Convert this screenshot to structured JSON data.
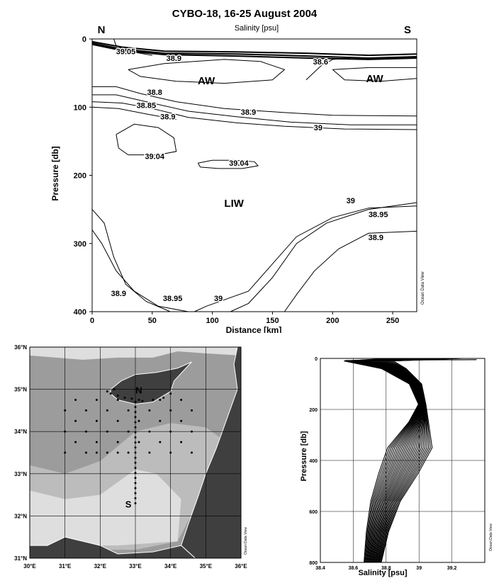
{
  "chart_data": [
    {
      "type": "contour",
      "title": "CYBO-18,  16-25 August 2004",
      "subtitle": "Salinity [psu]",
      "xlabel": "Distance [km]",
      "ylabel": "Pressure [db]",
      "xlim": [
        0,
        270
      ],
      "ylim": [
        400,
        0
      ],
      "xticks": [
        "0",
        "50",
        "100",
        "150",
        "200",
        "250"
      ],
      "yticks": [
        "0",
        "100",
        "200",
        "300",
        "400"
      ],
      "end_labels": {
        "left": "N",
        "right": "S"
      },
      "water_masses": [
        {
          "name": "AW",
          "x": 95,
          "y": 60
        },
        {
          "name": "AW",
          "x": 235,
          "y": 57
        },
        {
          "name": "LIW",
          "x": 118,
          "y": 240
        }
      ],
      "contour_labels": [
        {
          "text": "39.05",
          "x": 28,
          "y": 18
        },
        {
          "text": "38.9",
          "x": 68,
          "y": 28
        },
        {
          "text": "38.6",
          "x": 190,
          "y": 33
        },
        {
          "text": "38.8",
          "x": 52,
          "y": 78
        },
        {
          "text": "38.85",
          "x": 45,
          "y": 97
        },
        {
          "text": "38.9",
          "x": 63,
          "y": 114
        },
        {
          "text": "38.9",
          "x": 130,
          "y": 107
        },
        {
          "text": "39",
          "x": 188,
          "y": 130
        },
        {
          "text": "39.04",
          "x": 52,
          "y": 172
        },
        {
          "text": "39.04",
          "x": 122,
          "y": 182
        },
        {
          "text": "39",
          "x": 215,
          "y": 237
        },
        {
          "text": "38.95",
          "x": 238,
          "y": 257
        },
        {
          "text": "38.9",
          "x": 236,
          "y": 291
        },
        {
          "text": "38.9",
          "x": 22,
          "y": 373
        },
        {
          "text": "38.95",
          "x": 67,
          "y": 380
        },
        {
          "text": "39",
          "x": 105,
          "y": 380
        }
      ],
      "credit": "Ocean Data View"
    },
    {
      "type": "map",
      "lon_ticks": [
        "30°E",
        "31°E",
        "32°E",
        "33°E",
        "34°E",
        "35°E",
        "36°E"
      ],
      "lat_ticks": [
        "31°N",
        "32°N",
        "33°N",
        "34°N",
        "35°N",
        "36°N"
      ],
      "lon_range": [
        30,
        36
      ],
      "lat_range": [
        31,
        36
      ],
      "section_labels": [
        {
          "text": "N",
          "lon": 33.1,
          "lat": 34.9
        },
        {
          "text": "S",
          "lon": 32.8,
          "lat": 32.2
        }
      ],
      "credit": "Ocean Data View"
    },
    {
      "type": "line",
      "xlabel": "Salinity [psu]",
      "ylabel": "Pressure [db]",
      "xlim": [
        38.4,
        39.4
      ],
      "ylim": [
        800,
        0
      ],
      "xticks": [
        "38.4",
        "38.6",
        "38.8",
        "39",
        "39.2"
      ],
      "yticks": [
        "0",
        "200",
        "400",
        "600",
        "800"
      ],
      "credit": "Ocean Data View"
    }
  ],
  "colors": {
    "land": "#3f3f3f",
    "sea_dark": "#9c9c9c",
    "sea_mid": "#bcbcbc",
    "sea_light": "#dedede"
  }
}
